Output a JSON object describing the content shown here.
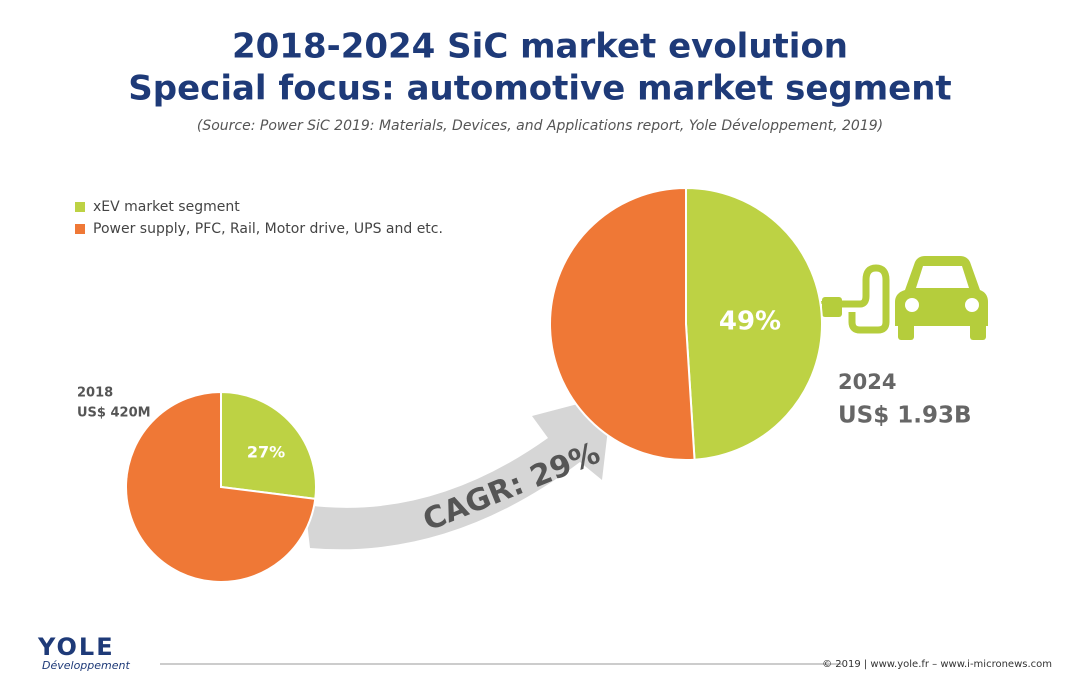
{
  "header": {
    "title": "2018-2024 SiC market evolution",
    "subtitle": "Special focus: automotive market segment",
    "source": "(Source: Power SiC 2019: Materials, Devices, and Applications report, Yole Développement, 2019)"
  },
  "chart_data": [
    {
      "type": "pie",
      "year": "2018",
      "total_label": "US$ 420M",
      "categories": [
        "xEV market segment",
        "Power supply, PFC, Rail, Motor drive, UPS and etc."
      ],
      "colors": [
        "#bdd244",
        "#ef7836"
      ],
      "values": [
        27,
        73
      ],
      "value_labels": [
        "27%",
        null
      ]
    },
    {
      "type": "pie",
      "year": "2024",
      "total_label": "US$ 1.93B",
      "categories": [
        "xEV market segment",
        "Power supply, PFC, Rail, Motor drive, UPS and etc."
      ],
      "colors": [
        "#bdd244",
        "#ef7836"
      ],
      "values": [
        49,
        51
      ],
      "value_labels": [
        "49%",
        null
      ]
    }
  ],
  "arrow_label": "CAGR: 29%",
  "footer": {
    "logo": "YOLE",
    "logo_sub": "Développement",
    "copyright": "© 2019 | www.yole.fr – www.i-micronews.com"
  }
}
